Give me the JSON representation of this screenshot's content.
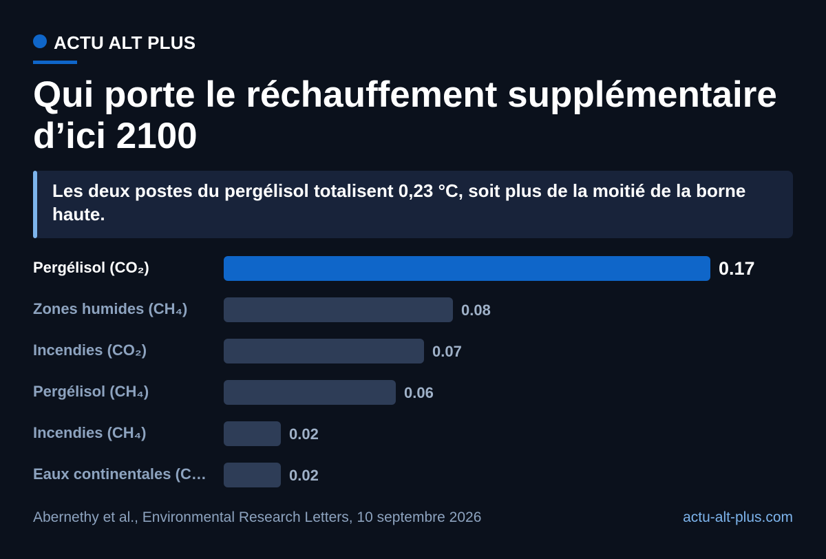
{
  "brand": {
    "name": "ACTU ALT PLUS",
    "color": "#0f66c9"
  },
  "headline": "Qui porte le réchauffement supplémentaire d’ici 2100",
  "callout": "Les deux postes du pergélisol totalisent 0,23 °C, soit plus de la moitié de la borne haute.",
  "chart_data": {
    "type": "bar",
    "orientation": "horizontal",
    "categories": [
      "Pergélisol (CO₂)",
      "Zones humides (CH₄)",
      "Incendies (CO₂)",
      "Pergélisol (CH₄)",
      "Incendies (CH₄)",
      "Eaux continentales (C…"
    ],
    "values": [
      0.17,
      0.08,
      0.07,
      0.06,
      0.02,
      0.02
    ],
    "value_labels": [
      "0.17",
      "0.08",
      "0.07",
      "0.06",
      "0.02",
      "0.02"
    ],
    "highlight_index": 0,
    "xlim": [
      0,
      0.17
    ],
    "grid": false,
    "colors": {
      "highlight": "#0f66c9",
      "default": "#2e3d57"
    }
  },
  "footer": {
    "source": "Abernethy et al., Environmental Research Letters, 10 septembre 2026",
    "site": "actu-alt-plus.com"
  }
}
